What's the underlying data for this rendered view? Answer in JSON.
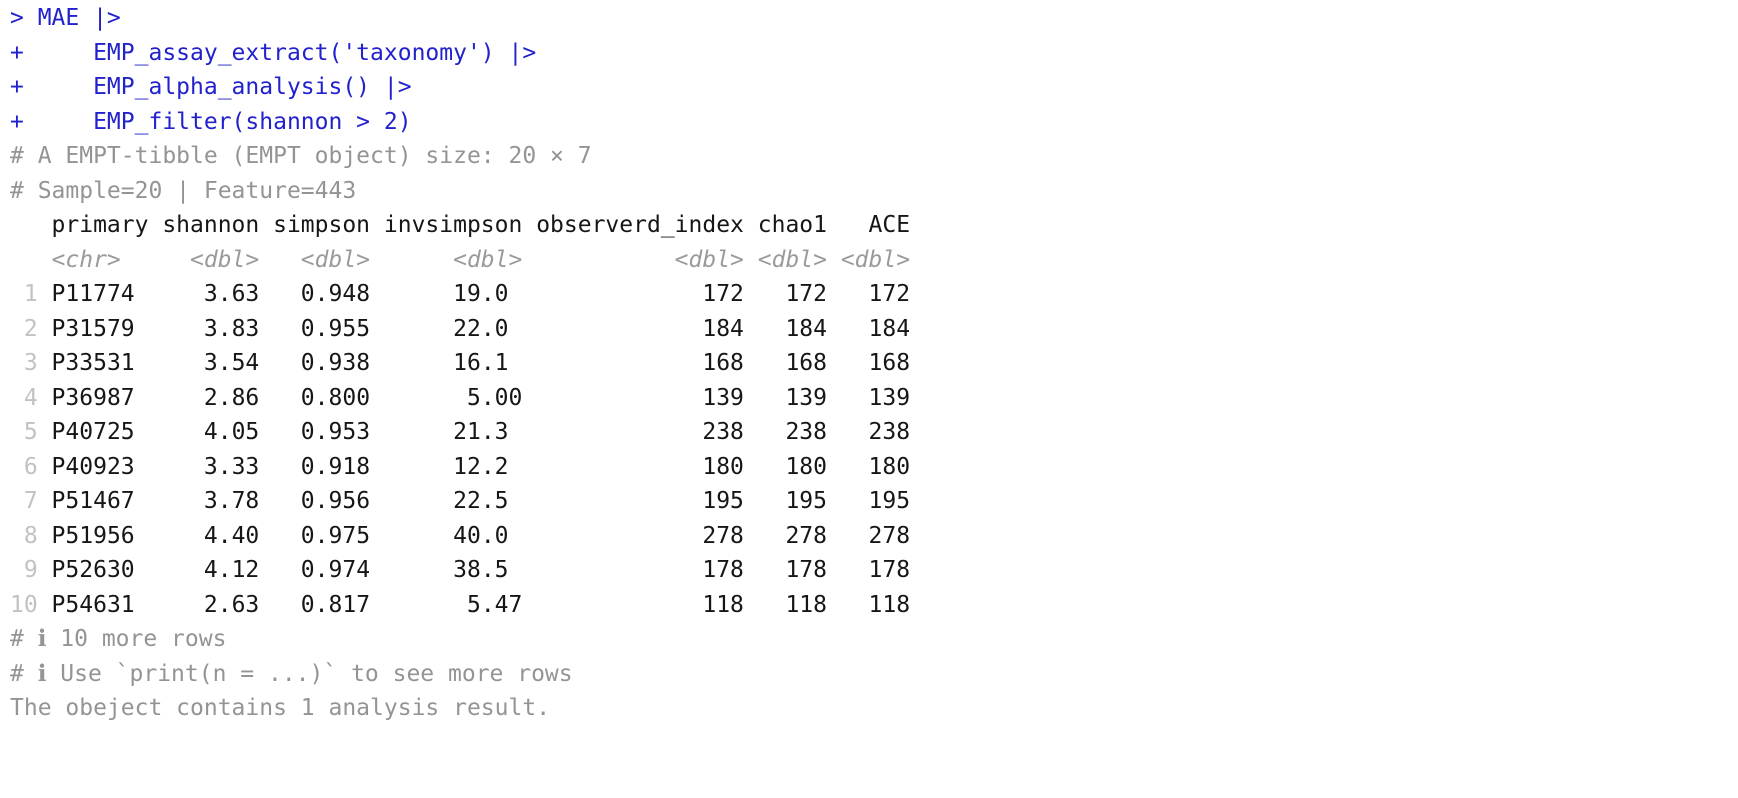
{
  "colors": {
    "background": "#ffffff",
    "input_blue": "#2121cd",
    "comment_gray": "#949494",
    "type_gray": "#9a9a9a",
    "rownum_gray": "#c2c2c2",
    "data_black": "#161616"
  },
  "console": {
    "input_lines": [
      "> MAE |>",
      "+     EMP_assay_extract('taxonomy') |>",
      "+     EMP_alpha_analysis() |>",
      "+     EMP_filter(shannon > 2)"
    ],
    "summary_lines": [
      "# A EMPT-tibble (EMPT object) size: 20 × 7",
      "# Sample=20 | Feature=443"
    ],
    "footer_lines": [
      "# ℹ 10 more rows",
      "# ℹ Use `print(n = ...)` to see more rows"
    ],
    "message": "The obeject contains 1 analysis result."
  },
  "table": {
    "row_number_width": 2,
    "columns": [
      {
        "name": "primary",
        "type": "<chr>",
        "align": "left",
        "width": 7
      },
      {
        "name": "shannon",
        "type": "<dbl>",
        "align": "right",
        "width": 7
      },
      {
        "name": "simpson",
        "type": "<dbl>",
        "align": "right",
        "width": 7
      },
      {
        "name": "invsimpson",
        "type": "<dbl>",
        "align": "right",
        "width": 10
      },
      {
        "name": "observerd_index",
        "type": "<dbl>",
        "align": "right",
        "width": 15
      },
      {
        "name": "chao1",
        "type": "<dbl>",
        "align": "right",
        "width": 5
      },
      {
        "name": "ACE",
        "type": "<dbl>",
        "align": "right",
        "width": 5
      }
    ],
    "rows": [
      [
        "P11774",
        "3.63",
        "0.948",
        "19.0 ",
        "172",
        "172",
        "172"
      ],
      [
        "P31579",
        "3.83",
        "0.955",
        "22.0 ",
        "184",
        "184",
        "184"
      ],
      [
        "P33531",
        "3.54",
        "0.938",
        "16.1 ",
        "168",
        "168",
        "168"
      ],
      [
        "P36987",
        "2.86",
        "0.800",
        " 5.00",
        "139",
        "139",
        "139"
      ],
      [
        "P40725",
        "4.05",
        "0.953",
        "21.3 ",
        "238",
        "238",
        "238"
      ],
      [
        "P40923",
        "3.33",
        "0.918",
        "12.2 ",
        "180",
        "180",
        "180"
      ],
      [
        "P51467",
        "3.78",
        "0.956",
        "22.5 ",
        "195",
        "195",
        "195"
      ],
      [
        "P51956",
        "4.40",
        "0.975",
        "40.0 ",
        "278",
        "278",
        "278"
      ],
      [
        "P52630",
        "4.12",
        "0.974",
        "38.5 ",
        "178",
        "178",
        "178"
      ],
      [
        "P54631",
        "2.63",
        "0.817",
        " 5.47",
        "118",
        "118",
        "118"
      ]
    ]
  }
}
